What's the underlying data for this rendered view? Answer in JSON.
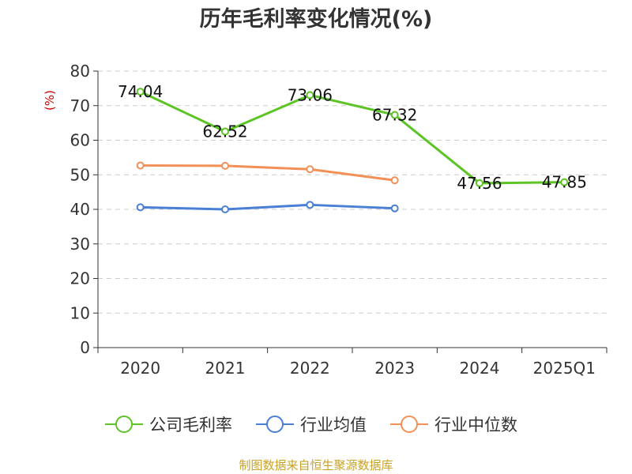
{
  "chart_data": {
    "type": "line",
    "title": "历年毛利率变化情况(%)",
    "ylabel": "(%)",
    "xlabel": "",
    "categories": [
      "2020",
      "2021",
      "2022",
      "2023",
      "2024",
      "2025Q1"
    ],
    "ylim": [
      0,
      80
    ],
    "yticks": [
      0,
      10,
      20,
      30,
      40,
      50,
      60,
      70,
      80
    ],
    "grid": true,
    "legend_position": "bottom",
    "series": [
      {
        "name": "公司毛利率",
        "color": "#5cc424",
        "values": [
          74.04,
          62.52,
          73.06,
          67.32,
          47.56,
          47.85
        ],
        "labels": [
          "74.04",
          "62.52",
          "73.06",
          "67.32",
          "47.56",
          "47.85"
        ]
      },
      {
        "name": "行业均值",
        "color": "#4a7fd6",
        "values": [
          40.6,
          40.0,
          41.3,
          40.3,
          null,
          null
        ]
      },
      {
        "name": "行业中位数",
        "color": "#f29058",
        "values": [
          52.7,
          52.6,
          51.6,
          48.4,
          null,
          null
        ]
      }
    ]
  },
  "footer": {
    "source": "制图数据来自恒生聚源数据库"
  }
}
